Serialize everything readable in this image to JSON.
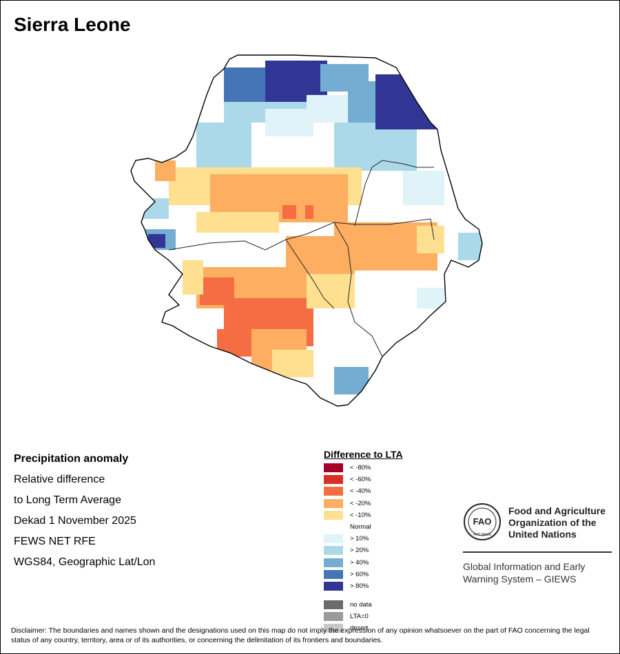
{
  "title": "Sierra Leone",
  "info_lines": [
    "Precipitation anomaly",
    "Relative difference",
    "to Long Term Average",
    "Dekad 1 November 2025",
    "FEWS NET RFE",
    "WGS84, Geographic Lat/Lon"
  ],
  "legend": {
    "title": "Difference to LTA",
    "items": [
      {
        "label": "< -80%",
        "color": "#a50026"
      },
      {
        "label": "< -60%",
        "color": "#d73027"
      },
      {
        "label": "< -40%",
        "color": "#f46d43"
      },
      {
        "label": "< -20%",
        "color": "#fdae61"
      },
      {
        "label": "< -10%",
        "color": "#fee090"
      },
      {
        "label": "Normal",
        "color": "#ffffff"
      },
      {
        "label": "> 10%",
        "color": "#e0f3f8"
      },
      {
        "label": "> 20%",
        "color": "#abd9e9"
      },
      {
        "label": "> 40%",
        "color": "#74add1"
      },
      {
        "label": "> 60%",
        "color": "#4575b4"
      },
      {
        "label": "> 80%",
        "color": "#313695"
      }
    ],
    "extra": [
      {
        "label": "no data",
        "color": "#6b6b6b"
      },
      {
        "label": "LTA=0",
        "color": "#9a9a9a"
      },
      {
        "label": "desert",
        "color": "#c8c8c8"
      }
    ]
  },
  "fao": {
    "name_lines": [
      "Food and Agriculture",
      "Organization of the",
      "United Nations"
    ],
    "logo_text": "FAO",
    "motto": "FIAT PANIS",
    "giews_lines": [
      "Global Information and Early",
      "Warning System – GIEWS"
    ]
  },
  "disclaimer": "Disclaimer: The boundaries and names shown and the designations used on this map do not imply the expression of any opinion whatsoever on the part of FAO concerning the legal status of any country, territory, area or of its authorities, or concerning the delimitation of its frontiers and boundaries."
}
